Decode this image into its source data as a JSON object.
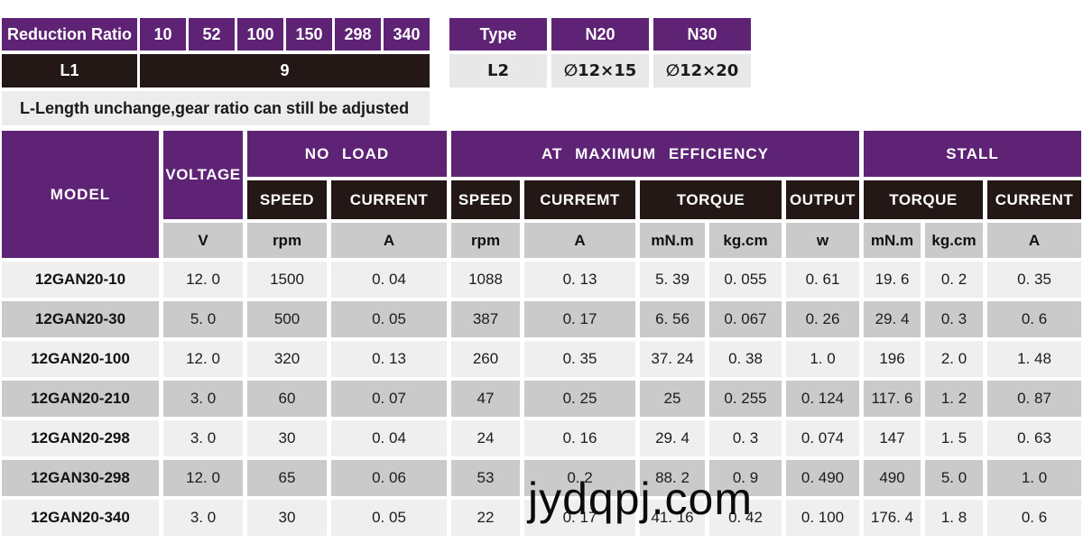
{
  "reduction_table": {
    "header": "Reduction Ratio",
    "ratios": [
      "10",
      "52",
      "100",
      "150",
      "298",
      "340"
    ],
    "l1_label": "L1",
    "l1_value": "9",
    "note": "L-Length unchange,gear ratio can still be adjusted"
  },
  "type_table": {
    "type_header": "Type",
    "n20_header": "N20",
    "n30_header": "N30",
    "l2_label": "L2",
    "n20_value": "∅12×15",
    "n30_value": "∅12×20"
  },
  "spec_table": {
    "model_header": "MODEL",
    "voltage_header": "VOLTAGE",
    "group_no_load": "NO LOAD",
    "group_max_eff": "AT MAXIMUM EFFICIENCY",
    "group_stall": "STALL",
    "sub_headers": [
      "SPEED",
      "CURRENT",
      "SPEED",
      "CURREMT",
      "TORQUE",
      "OUTPUT",
      "TORQUE",
      "CURRENT"
    ],
    "units": [
      "V",
      "rpm",
      "A",
      "rpm",
      "A",
      "mN.m",
      "kg.cm",
      "w",
      "mN.m",
      "kg.cm",
      "A"
    ],
    "rows": [
      {
        "model": "12GAN20-10",
        "values": [
          "12. 0",
          "1500",
          "0. 04",
          "1088",
          "0. 13",
          "5. 39",
          "0. 055",
          "0. 61",
          "19. 6",
          "0. 2",
          "0. 35"
        ]
      },
      {
        "model": "12GAN20-30",
        "values": [
          "5. 0",
          "500",
          "0. 05",
          "387",
          "0. 17",
          "6. 56",
          "0. 067",
          "0. 26",
          "29. 4",
          "0. 3",
          "0. 6"
        ]
      },
      {
        "model": "12GAN20-100",
        "values": [
          "12. 0",
          "320",
          "0. 13",
          "260",
          "0. 35",
          "37. 24",
          "0. 38",
          "1. 0",
          "196",
          "2. 0",
          "1. 48"
        ]
      },
      {
        "model": "12GAN20-210",
        "values": [
          "3. 0",
          "60",
          "0. 07",
          "47",
          "0. 25",
          "25",
          "0. 255",
          "0. 124",
          "117. 6",
          "1. 2",
          "0. 87"
        ]
      },
      {
        "model": "12GAN20-298",
        "values": [
          "3. 0",
          "30",
          "0. 04",
          "24",
          "0. 16",
          "29. 4",
          "0. 3",
          "0. 074",
          "147",
          "1. 5",
          "0. 63"
        ]
      },
      {
        "model": "12GAN30-298",
        "values": [
          "12. 0",
          "65",
          "0. 06",
          "53",
          "0. 2",
          "88. 2",
          "0. 9",
          "0. 490",
          "490",
          "5. 0",
          "1. 0"
        ]
      },
      {
        "model": "12GAN20-340",
        "values": [
          "3. 0",
          "30",
          "0. 05",
          "22",
          "0. 17",
          "41. 16",
          "0. 42",
          "0. 100",
          "176. 4",
          "1. 8",
          "0. 6"
        ]
      }
    ]
  },
  "watermark": "jydqpj.com",
  "colors": {
    "purple": "#5E2375",
    "black_cell": "#231815",
    "unit_gray": "#CACACA",
    "row_light": "#F0EFEF",
    "row_dark": "#CBCACA",
    "note_bg": "#EDECEC"
  }
}
